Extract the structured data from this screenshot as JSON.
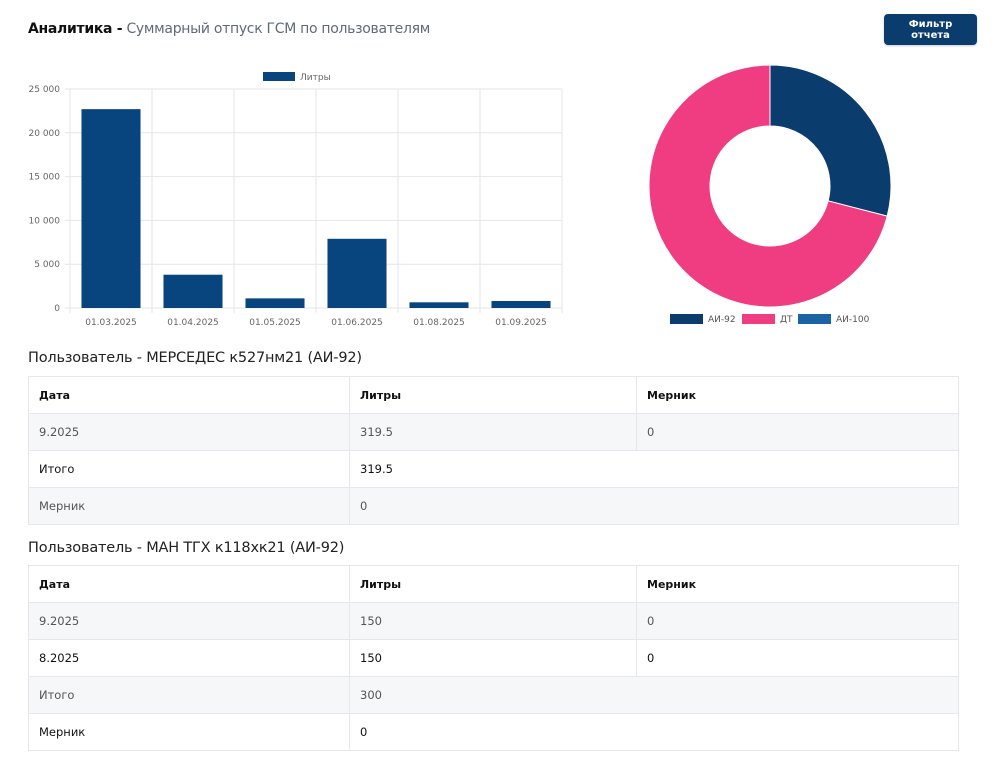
{
  "header": {
    "title": "Аналитика -",
    "subtitle": "Суммарный отпуск ГСМ по пользователям",
    "filter_button": "Фильтр отчета"
  },
  "colors": {
    "primary": "#0b3c6e",
    "bar": "#08457e",
    "dt": "#f03c80",
    "ai100": "#1a63a5"
  },
  "chart_data": [
    {
      "type": "bar",
      "legend": [
        "Литры"
      ],
      "categories": [
        "01.03.2025",
        "01.04.2025",
        "01.05.2025",
        "01.06.2025",
        "01.08.2025",
        "01.09.2025"
      ],
      "values": [
        22700,
        3800,
        1100,
        7900,
        650,
        800
      ],
      "ylim": [
        0,
        25000
      ],
      "yticks": [
        "0",
        "5 000",
        "10 000",
        "15 000",
        "20 000",
        "25 000"
      ],
      "ytick_values": [
        0,
        5000,
        10000,
        15000,
        20000,
        25000
      ],
      "grid": true
    },
    {
      "type": "pie",
      "donut": true,
      "labels": [
        "АИ-92",
        "ДТ",
        "АИ-100"
      ],
      "values": [
        29,
        71,
        0
      ],
      "legend": [
        "АИ-92",
        "ДТ",
        "АИ-100"
      ],
      "legend_position": "bottom"
    }
  ],
  "tables": [
    {
      "title": "Пользователь - МЕРСЕДЕС к527нм21 (АИ-92)",
      "headers": [
        "Дата",
        "Литры",
        "Мерник"
      ],
      "rows": [
        [
          "9.2025",
          "319.5",
          "0"
        ]
      ],
      "total_label": "Итого",
      "total_value": "319.5",
      "mernik_label": "Мерник",
      "mernik_value": "0"
    },
    {
      "title": "Пользователь - МАН ТГХ к118хк21 (АИ-92)",
      "headers": [
        "Дата",
        "Литры",
        "Мерник"
      ],
      "rows": [
        [
          "9.2025",
          "150",
          "0"
        ],
        [
          "8.2025",
          "150",
          "0"
        ]
      ],
      "total_label": "Итого",
      "total_value": "300",
      "mernik_label": "Мерник",
      "mernik_value": "0"
    }
  ]
}
